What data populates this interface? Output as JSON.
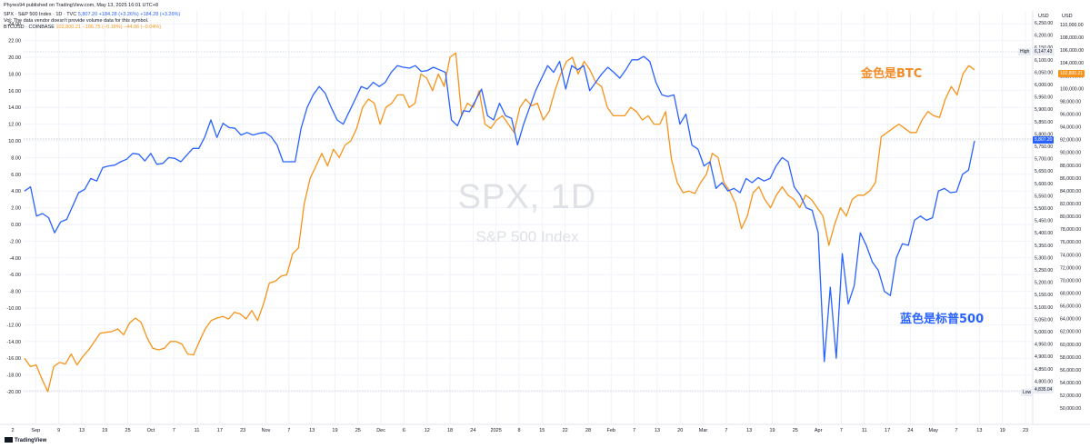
{
  "header": {
    "published": "Phyres94 published on TradingView.com, May 13, 2025 16:01 UTC+8",
    "spx_name": "SPX · S&P 500 Index · 1D · TVC",
    "spx_values": "5,807.20 +184.28 (+3.26%) +184.28 (+3.26%)",
    "note": "Vol: The data vendor doesn't provide volume data for this symbol.",
    "btc_name": "BTCUSD · COINBASE",
    "btc_values": "102,800.21 −186.75 (−0.18%) −44.06 (−0.04%)"
  },
  "brand": "TradingView",
  "watermark": {
    "symbol": "SPX, 1D",
    "name": "S&P 500 Index"
  },
  "annotations": {
    "gold": "金色是BTC",
    "blue": "蓝色是标普500"
  },
  "colors": {
    "spx": "#2962ff",
    "btc": "#f7931a",
    "gold_text": "#f28c28",
    "blue_text": "#2962ff",
    "grid": "#f0f3fa"
  },
  "tags": {
    "high_label": "High",
    "high_value": "6,147.43",
    "low_label": "Low",
    "low_value": "4,835.04",
    "spx_last": "5,807.20",
    "btc_last": "102,800.21"
  },
  "chart_data": {
    "type": "line",
    "left_axis": {
      "unit": "%",
      "ticks": [
        "24.00",
        "22.00",
        "20.00",
        "18.00",
        "16.00",
        "14.00",
        "12.00",
        "10.00",
        "8.00",
        "6.00",
        "4.00",
        "2.00",
        "0.00",
        "-2.00",
        "-4.00",
        "-6.00",
        "-8.00",
        "-10.00",
        "-12.00",
        "-14.00",
        "-16.00",
        "-18.00",
        "-20.00"
      ]
    },
    "spx_axis": {
      "label": "USD",
      "ticks": [
        "6,250.00",
        "6,200.00",
        "6,150.00",
        "6,100.00",
        "6,050.00",
        "6,000.00",
        "5,950.00",
        "5,900.00",
        "5,850.00",
        "5,800.00",
        "5,750.00",
        "5,700.00",
        "5,650.00",
        "5,600.00",
        "5,550.00",
        "5,500.00",
        "5,450.00",
        "5,400.00",
        "5,350.00",
        "5,300.00",
        "5,250.00",
        "5,200.00",
        "5,150.00",
        "5,100.00",
        "5,050.00",
        "5,000.00",
        "4,950.00",
        "4,900.00",
        "4,850.00",
        "4,800.00"
      ]
    },
    "btc_axis": {
      "label": "USD",
      "ticks": [
        "110,000.00",
        "108,000.00",
        "106,000.00",
        "104,000.00",
        "102,000.00",
        "100,000.00",
        "98,000.00",
        "96,000.00",
        "94,000.00",
        "92,000.00",
        "90,000.00",
        "88,000.00",
        "86,000.00",
        "84,000.00",
        "82,000.00",
        "80,000.00",
        "78,000.00",
        "76,000.00",
        "74,000.00",
        "72,000.00",
        "70,000.00",
        "68,000.00",
        "66,000.00",
        "64,000.00",
        "62,000.00",
        "60,000.00",
        "58,000.00",
        "56,000.00",
        "54,000.00",
        "52,000.00",
        "50,000.00"
      ]
    },
    "x_ticks": [
      "2",
      "Sep",
      "9",
      "13",
      "19",
      "25",
      "Oct",
      "7",
      "11",
      "17",
      "23",
      "Nov",
      "7",
      "13",
      "19",
      "25",
      "Dec",
      "6",
      "12",
      "18",
      "24",
      "2025",
      "8",
      "15",
      "22",
      "28",
      "Feb",
      "7",
      "13",
      "20",
      "Mar",
      "7",
      "13",
      "19",
      "25",
      "Apr",
      "7",
      "11",
      "17",
      "24",
      "May",
      "7",
      "13",
      "19",
      "23"
    ],
    "series": [
      {
        "name": "SPX",
        "unit": "%",
        "values": [
          4.0,
          4.5,
          1.0,
          1.3,
          0.8,
          -1.0,
          0.3,
          0.6,
          2.2,
          3.8,
          4.2,
          5.5,
          5.2,
          6.8,
          7.0,
          7.1,
          7.5,
          7.8,
          8.5,
          8.4,
          7.6,
          8.5,
          7.2,
          7.3,
          8.0,
          7.9,
          7.5,
          8.3,
          9.1,
          9.1,
          10.5,
          12.5,
          10.4,
          12.1,
          11.6,
          11.5,
          10.7,
          11.0,
          10.7,
          10.9,
          11.0,
          10.5,
          9.5,
          7.5,
          7.5,
          7.5,
          11.5,
          14.0,
          15.5,
          16.5,
          15.7,
          14.0,
          12.5,
          12.0,
          13.5,
          15.0,
          16.5,
          16.2,
          17.0,
          16.5,
          17.0,
          18.2,
          19.0,
          18.8,
          18.7,
          19.0,
          18.3,
          18.4,
          18.8,
          18.5,
          18.2,
          12.5,
          11.8,
          13.6,
          13.5,
          14.8,
          16.2,
          13.0,
          12.5,
          14.5,
          13.0,
          12.7,
          9.5,
          12.0,
          14.0,
          16.0,
          17.5,
          19.0,
          18.2,
          19.5,
          16.2,
          19.0,
          18.5,
          19.0,
          16.0,
          17.0,
          18.0,
          18.8,
          18.2,
          17.5,
          18.5,
          19.7,
          19.7,
          20.1,
          19.5,
          17.0,
          15.5,
          15.3,
          15.5,
          12.0,
          13.2,
          9.5,
          9.0,
          7.0,
          7.5,
          4.3,
          5.0,
          4.0,
          4.3,
          3.8,
          5.5,
          5.0,
          5.6,
          5.2,
          5.5,
          7.0,
          8.0,
          7.5,
          4.5,
          3.5,
          2.0,
          1.7,
          -1.0,
          -16.4,
          -7.5,
          -16.0,
          -3.5,
          -9.5,
          -7.3,
          -1.0,
          -2.5,
          -4.5,
          -5.5,
          -8.0,
          -8.5,
          -4.0,
          -2.3,
          -2.5,
          0.5,
          1.0,
          0.5,
          0.8,
          4.0,
          4.3,
          3.8,
          3.9,
          6.0,
          6.5,
          10.0
        ]
      },
      {
        "name": "BTC",
        "unit": "%",
        "values": [
          -16.0,
          -17.0,
          -16.8,
          -18.5,
          -20.0,
          -17.0,
          -16.5,
          -16.7,
          -15.5,
          -16.8,
          -15.8,
          -15.0,
          -14.0,
          -13.0,
          -12.9,
          -12.8,
          -12.5,
          -13.2,
          -11.8,
          -11.2,
          -11.7,
          -13.5,
          -14.8,
          -15.0,
          -14.8,
          -14.0,
          -14.0,
          -14.3,
          -15.5,
          -15.6,
          -14.0,
          -12.5,
          -11.5,
          -11.2,
          -11.0,
          -11.3,
          -10.5,
          -10.7,
          -11.3,
          -10.3,
          -11.5,
          -9.5,
          -7.0,
          -6.8,
          -6.2,
          -6.0,
          -3.5,
          -2.8,
          2.5,
          5.5,
          7.0,
          8.5,
          7.0,
          9.0,
          8.0,
          9.5,
          10.0,
          11.5,
          14.0,
          15.0,
          14.5,
          12.0,
          14.0,
          14.5,
          15.5,
          15.5,
          14.0,
          14.5,
          18.0,
          17.5,
          16.0,
          18.0,
          16.5,
          20.0,
          20.5,
          13.0,
          14.5,
          14.0,
          16.0,
          12.0,
          11.5,
          12.5,
          13.0,
          12.0,
          11.0,
          14.0,
          15.0,
          14.2,
          14.5,
          12.5,
          13.5,
          16.0,
          18.0,
          19.5,
          20.0,
          18.0,
          19.5,
          18.5,
          17.0,
          16.5,
          14.0,
          13.0,
          13.0,
          13.0,
          14.0,
          13.5,
          12.5,
          13.0,
          12.0,
          12.0,
          13.5,
          7.8,
          5.0,
          3.8,
          4.0,
          3.7,
          5.0,
          6.0,
          8.5,
          8.0,
          5.0,
          4.0,
          2.5,
          -0.5,
          1.0,
          3.8,
          4.5,
          3.0,
          2.0,
          3.5,
          4.5,
          3.5,
          3.0,
          2.0,
          3.5,
          3.0,
          2.0,
          1.0,
          -2.5,
          0.0,
          2.0,
          1.0,
          3.0,
          3.5,
          3.5,
          4.0,
          5.0,
          10.5,
          11.0,
          11.5,
          12.0,
          11.5,
          11.0,
          11.0,
          12.5,
          13.5,
          13.0,
          12.8,
          15.0,
          16.5,
          15.5,
          18.0,
          19.0,
          18.5
        ]
      }
    ],
    "grid": true,
    "reference_lines": [
      {
        "label": "High",
        "value": "6,147.43"
      },
      {
        "label": "Low",
        "value": "4,835.04"
      }
    ]
  }
}
